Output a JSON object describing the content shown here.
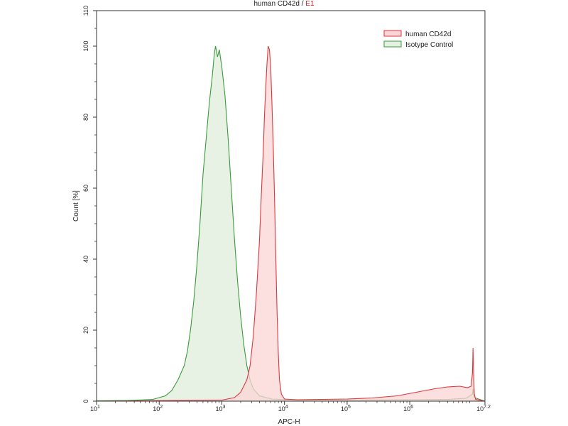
{
  "chart_data": {
    "type": "area",
    "title": {
      "main": "human CD42d",
      "separator": " / ",
      "gate": "E1",
      "gate_color": "#d42020"
    },
    "xlabel": "APC-H",
    "ylabel": "Count [%]",
    "x_scale": "log",
    "xlim_log10": [
      1,
      7.2
    ],
    "ylim": [
      0,
      110
    ],
    "x_ticks": [
      {
        "base": "10",
        "exp": "1",
        "log10": 1
      },
      {
        "base": "10",
        "exp": "2",
        "log10": 2
      },
      {
        "base": "10",
        "exp": "3",
        "log10": 3
      },
      {
        "base": "10",
        "exp": "4",
        "log10": 4
      },
      {
        "base": "10",
        "exp": "5",
        "log10": 5
      },
      {
        "base": "10",
        "exp": "6",
        "log10": 6
      },
      {
        "base": "10",
        "exp": "7.2",
        "log10": 7.2
      }
    ],
    "y_ticks": [
      0,
      20,
      40,
      60,
      80,
      100,
      110
    ],
    "grid": false,
    "legend_position": "top-right",
    "series": [
      {
        "name": "human CD42d",
        "stroke": "#e0363c",
        "fill": "#fbd5d6",
        "points_log10_x": [
          [
            1.0,
            0
          ],
          [
            3.0,
            0.3
          ],
          [
            3.2,
            1.0
          ],
          [
            3.3,
            2.5
          ],
          [
            3.4,
            6
          ],
          [
            3.45,
            10
          ],
          [
            3.5,
            18
          ],
          [
            3.55,
            30
          ],
          [
            3.6,
            45
          ],
          [
            3.63,
            58
          ],
          [
            3.66,
            70
          ],
          [
            3.68,
            80
          ],
          [
            3.7,
            88
          ],
          [
            3.72,
            95
          ],
          [
            3.74,
            100
          ],
          [
            3.76,
            99
          ],
          [
            3.78,
            94
          ],
          [
            3.8,
            84
          ],
          [
            3.82,
            72
          ],
          [
            3.84,
            58
          ],
          [
            3.86,
            42
          ],
          [
            3.88,
            26
          ],
          [
            3.9,
            14
          ],
          [
            3.92,
            6
          ],
          [
            3.95,
            2
          ],
          [
            4.0,
            0.6
          ],
          [
            4.2,
            0.4
          ],
          [
            4.6,
            0.5
          ],
          [
            5.0,
            0.6
          ],
          [
            5.4,
            0.9
          ],
          [
            5.8,
            1.5
          ],
          [
            6.1,
            2.5
          ],
          [
            6.4,
            3.5
          ],
          [
            6.6,
            4.0
          ],
          [
            6.8,
            4.2
          ],
          [
            6.92,
            3.8
          ],
          [
            6.98,
            4.2
          ],
          [
            7.0,
            8
          ],
          [
            7.01,
            15
          ],
          [
            7.02,
            8
          ],
          [
            7.03,
            2
          ],
          [
            7.05,
            0.5
          ],
          [
            7.2,
            0
          ]
        ]
      },
      {
        "name": "Isotype Control",
        "stroke": "#3a9a3a",
        "fill": "#e4f1e2",
        "points_log10_x": [
          [
            1.0,
            0.1
          ],
          [
            1.5,
            0.2
          ],
          [
            1.9,
            0.5
          ],
          [
            2.1,
            1.5
          ],
          [
            2.2,
            3
          ],
          [
            2.3,
            6
          ],
          [
            2.4,
            10
          ],
          [
            2.45,
            14
          ],
          [
            2.5,
            20
          ],
          [
            2.55,
            28
          ],
          [
            2.6,
            38
          ],
          [
            2.65,
            50
          ],
          [
            2.7,
            64
          ],
          [
            2.75,
            74
          ],
          [
            2.8,
            84
          ],
          [
            2.85,
            92
          ],
          [
            2.88,
            98
          ],
          [
            2.9,
            100
          ],
          [
            2.93,
            97
          ],
          [
            2.96,
            99
          ],
          [
            3.0,
            94
          ],
          [
            3.05,
            86
          ],
          [
            3.1,
            74
          ],
          [
            3.15,
            60
          ],
          [
            3.2,
            46
          ],
          [
            3.25,
            34
          ],
          [
            3.3,
            24
          ],
          [
            3.35,
            16
          ],
          [
            3.4,
            10
          ],
          [
            3.45,
            6
          ],
          [
            3.5,
            3.5
          ],
          [
            3.6,
            1.5
          ],
          [
            3.8,
            0.6
          ],
          [
            4.2,
            0.3
          ],
          [
            5.0,
            0.3
          ],
          [
            6.0,
            0.4
          ],
          [
            6.6,
            0.5
          ],
          [
            6.9,
            0.8
          ],
          [
            7.0,
            2
          ],
          [
            7.01,
            3.5
          ],
          [
            7.03,
            1
          ],
          [
            7.2,
            0
          ]
        ]
      }
    ]
  }
}
